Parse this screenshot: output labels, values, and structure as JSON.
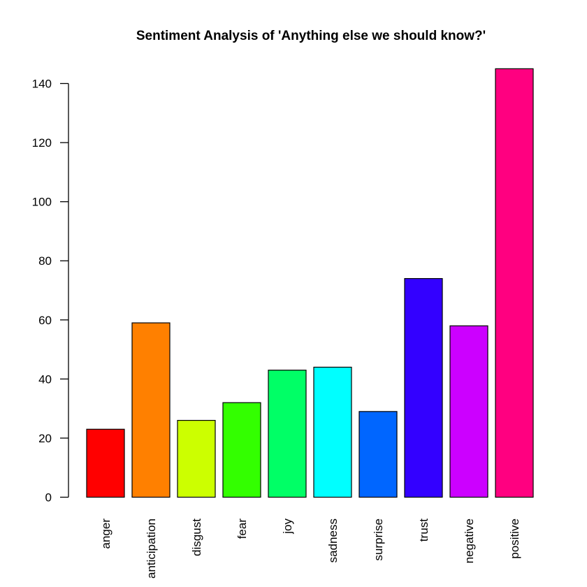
{
  "chart_data": {
    "type": "bar",
    "title": "Sentiment Analysis of 'Anything else we should know?'",
    "xlabel": "",
    "ylabel": "",
    "categories": [
      "anger",
      "anticipation",
      "disgust",
      "fear",
      "joy",
      "sadness",
      "surprise",
      "trust",
      "negative",
      "positive"
    ],
    "values": [
      23,
      59,
      26,
      32,
      43,
      44,
      29,
      74,
      58,
      145
    ],
    "colors": [
      "#FF0000",
      "#FF8000",
      "#CCFF00",
      "#33FF00",
      "#00FF66",
      "#00FFFF",
      "#0066FF",
      "#3300FF",
      "#CC00FF",
      "#FF0080"
    ],
    "ylim": [
      0,
      145
    ],
    "yticks": [
      0,
      20,
      40,
      60,
      80,
      100,
      120,
      140
    ],
    "ytick_labels": [
      "0",
      "20",
      "40",
      "60",
      "80",
      "100",
      "120",
      "140"
    ],
    "grid": false,
    "legend": "none"
  }
}
